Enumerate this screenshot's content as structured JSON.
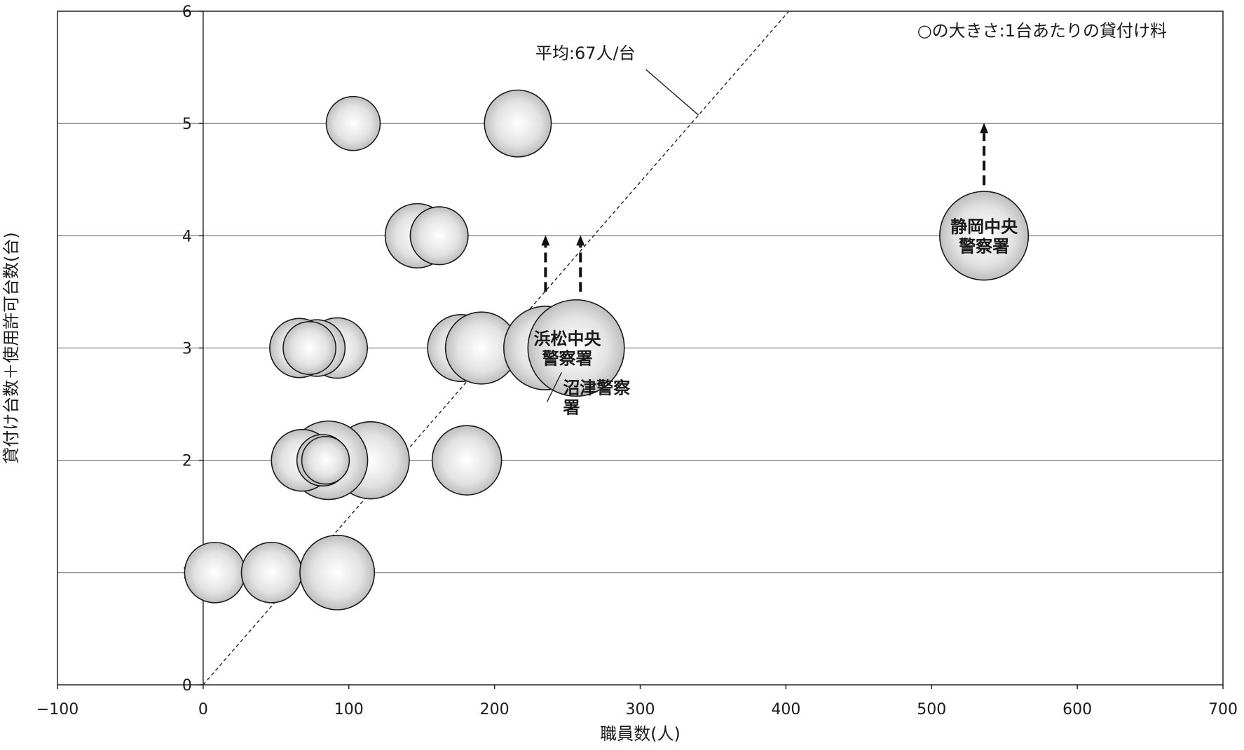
{
  "chart_data": {
    "type": "scatter",
    "subtype": "bubble",
    "xlabel": "職員数(人)",
    "ylabel": "貸付け台数＋使用許可台数(台)",
    "xlim": [
      -100,
      700
    ],
    "ylim": [
      0,
      6
    ],
    "x_ticks": [
      "−100",
      "0",
      "100",
      "200",
      "300",
      "400",
      "500",
      "600",
      "700"
    ],
    "x_tick_values": [
      -100,
      0,
      100,
      200,
      300,
      400,
      500,
      600,
      700
    ],
    "y_ticks": [
      "0",
      "1",
      "2",
      "3",
      "4",
      "5",
      "6"
    ],
    "y_tick_values": [
      0,
      1,
      2,
      3,
      4,
      5,
      6
    ],
    "grid": "horizontal",
    "size_note": "○の大きさ:1台あたりの貸付け料",
    "average_line": {
      "label": "平均:67人/台",
      "slope_persons_per_unit": 67
    },
    "points": [
      {
        "x": 8,
        "y": 1,
        "size": 47
      },
      {
        "x": 47,
        "y": 1,
        "size": 47
      },
      {
        "x": 92,
        "y": 1,
        "size": 58
      },
      {
        "x": 115,
        "y": 2,
        "size": 60
      },
      {
        "x": 86,
        "y": 2,
        "size": 61
      },
      {
        "x": 68,
        "y": 2,
        "size": 48
      },
      {
        "x": 82,
        "y": 2,
        "size": 40
      },
      {
        "x": 84,
        "y": 2,
        "size": 37
      },
      {
        "x": 181,
        "y": 2,
        "size": 54
      },
      {
        "x": 92,
        "y": 3,
        "size": 47
      },
      {
        "x": 78,
        "y": 3,
        "size": 44
      },
      {
        "x": 66,
        "y": 3,
        "size": 46
      },
      {
        "x": 73,
        "y": 3,
        "size": 41
      },
      {
        "x": 177,
        "y": 3,
        "size": 52
      },
      {
        "x": 191,
        "y": 3,
        "size": 56
      },
      {
        "x": 235,
        "y": 3,
        "size": 65,
        "label": "沼津警察署"
      },
      {
        "x": 256,
        "y": 3,
        "size": 75,
        "label": "浜松中央警察署"
      },
      {
        "x": 147,
        "y": 4,
        "size": 50
      },
      {
        "x": 162,
        "y": 4,
        "size": 45
      },
      {
        "x": 536,
        "y": 4,
        "size": 69,
        "label": "静岡中央警察署"
      },
      {
        "x": 103,
        "y": 5,
        "size": 42
      },
      {
        "x": 216,
        "y": 5,
        "size": 52
      }
    ],
    "arrows": [
      {
        "x": 235,
        "from_y": 3.5,
        "to_y": 4
      },
      {
        "x": 259,
        "from_y": 3.5,
        "to_y": 4
      },
      {
        "x": 536,
        "from_y": 4.45,
        "to_y": 5
      }
    ],
    "bubble_labels": [
      {
        "text_lines": [
          "浜松中央",
          "警察署"
        ],
        "x": 250,
        "y": 3
      },
      {
        "text_lines": [
          "静岡中央",
          "警察署"
        ],
        "x": 536,
        "y": 4
      }
    ],
    "callouts": [
      {
        "text_lines": [
          "沼津警察",
          "署"
        ],
        "x": 247,
        "y": 2.72,
        "point_x": 236,
        "point_y": 2.52
      }
    ]
  }
}
